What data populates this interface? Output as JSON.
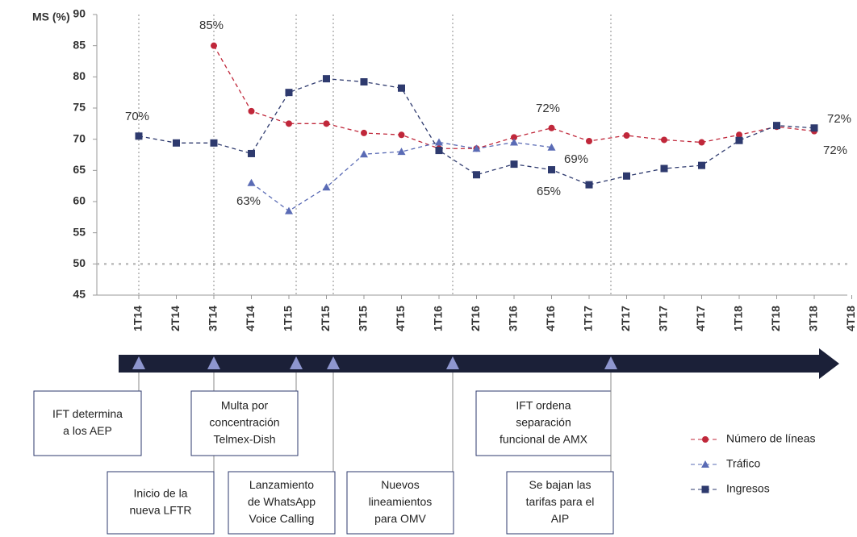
{
  "chart_data": {
    "type": "line",
    "y_label": "MS (%)",
    "categories": [
      "1T14",
      "2T14",
      "3T14",
      "4T14",
      "1T15",
      "2T15",
      "3T15",
      "4T15",
      "1T16",
      "2T16",
      "3T16",
      "4T16",
      "1T17",
      "2T17",
      "3T17",
      "4T17",
      "1T18",
      "2T18",
      "3T18",
      "4T18"
    ],
    "series": [
      {
        "name": "Número de líneas",
        "color": "#c0273a",
        "marker": "circle",
        "values": [
          null,
          null,
          85,
          74.5,
          72.5,
          72.5,
          71,
          70.7,
          68.5,
          68.5,
          70.3,
          71.8,
          69.7,
          70.6,
          69.9,
          69.5,
          70.7,
          72,
          71.3,
          null
        ]
      },
      {
        "name": "Tráfico",
        "color": "#5a6bb5",
        "marker": "triangle",
        "values": [
          null,
          null,
          null,
          63,
          58.5,
          62.3,
          67.6,
          68,
          69.5,
          68.5,
          69.5,
          68.7,
          null,
          null,
          null,
          null,
          null,
          null,
          null,
          null
        ]
      },
      {
        "name": "Ingresos",
        "color": "#2e3a6e",
        "marker": "square",
        "values": [
          70.5,
          69.4,
          69.4,
          67.7,
          77.5,
          79.7,
          79.2,
          78.2,
          68.2,
          64.3,
          66,
          65.1,
          62.7,
          64.1,
          65.3,
          65.8,
          69.8,
          72.2,
          71.8,
          null
        ]
      }
    ],
    "ylim": [
      45,
      90
    ],
    "yticks": [
      45,
      50,
      55,
      60,
      65,
      70,
      75,
      80,
      85,
      90
    ],
    "reference_line": 50,
    "annotations": [
      {
        "text": "70%",
        "color": "#5a6bb5"
      },
      {
        "text": "85%",
        "color": "#c0273a"
      },
      {
        "text": "63%",
        "color": "#5a6bb5"
      },
      {
        "text": "72%",
        "color": "#c0273a"
      },
      {
        "text": "69%",
        "color": "#5a6bb5"
      },
      {
        "text": "65%",
        "color": "#5a6bb5"
      },
      {
        "text": "72%",
        "color": "#5a6bb5"
      },
      {
        "text": "72%",
        "color": "#c0273a"
      }
    ],
    "events": [
      {
        "lines": [
          "IFT determina",
          "a los AEP"
        ]
      },
      {
        "lines": [
          "Inicio de la",
          "nueva LFTR"
        ]
      },
      {
        "lines": [
          "Multa por",
          "concentración",
          "Telmex-Dish"
        ]
      },
      {
        "lines": [
          "Lanzamiento",
          "de WhatsApp",
          "Voice Calling"
        ]
      },
      {
        "lines": [
          "Nuevos",
          "lineamientos",
          "para OMV"
        ]
      },
      {
        "lines": [
          "IFT ordena",
          "separación",
          "funcional de AMX"
        ]
      },
      {
        "lines": [
          "Se bajan las",
          "tarifas para el",
          "AIP"
        ]
      }
    ]
  }
}
